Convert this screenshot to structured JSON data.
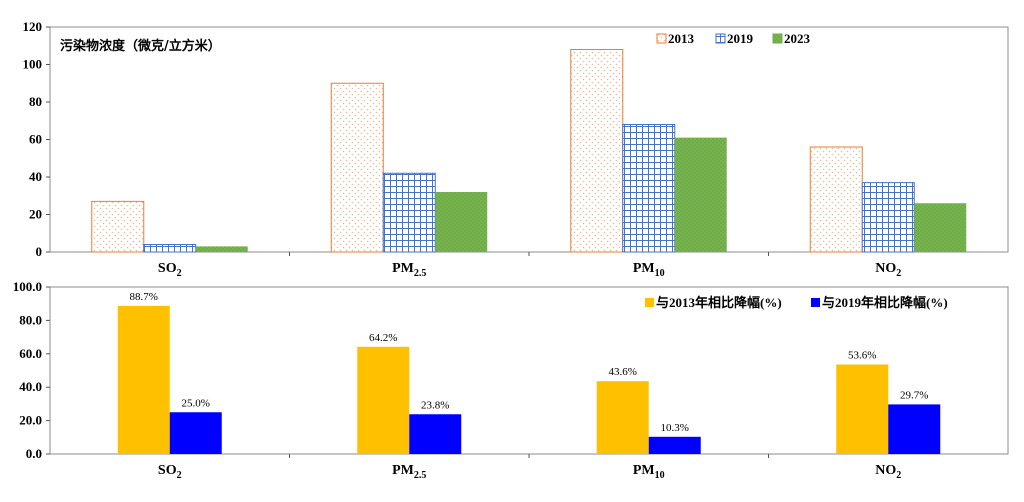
{
  "chart_data": [
    {
      "type": "bar",
      "title": "污染物浓度（微克/立方米）",
      "categories": [
        {
          "base": "SO",
          "sub": "2"
        },
        {
          "base": "PM",
          "sub": "2.5"
        },
        {
          "base": "PM",
          "sub": "10"
        },
        {
          "base": "NO",
          "sub": "2"
        }
      ],
      "series": [
        {
          "name": "2013",
          "values": [
            27,
            90,
            108,
            56
          ],
          "color": "#ED7D31",
          "pattern": "dots"
        },
        {
          "name": "2019",
          "values": [
            4,
            42,
            68,
            37
          ],
          "color": "#4472C4",
          "pattern": "grid"
        },
        {
          "name": "2023",
          "values": [
            3,
            32,
            61,
            26
          ],
          "color": "#70AD47",
          "pattern": "solid-dotted"
        }
      ],
      "ylim": [
        0,
        120
      ],
      "yticks": [
        "0",
        "20",
        "40",
        "60",
        "80",
        "100",
        "120"
      ],
      "legend_position": "top-right"
    },
    {
      "type": "bar",
      "categories": [
        {
          "base": "SO",
          "sub": "2"
        },
        {
          "base": "PM",
          "sub": "2.5"
        },
        {
          "base": "PM",
          "sub": "10"
        },
        {
          "base": "NO",
          "sub": "2"
        }
      ],
      "series": [
        {
          "name": "与2013年相比降幅(%)",
          "values": [
            88.7,
            64.2,
            43.6,
            53.6
          ],
          "labels": [
            "88.7%",
            "64.2%",
            "43.6%",
            "53.6%"
          ],
          "color": "#FFC000"
        },
        {
          "name": "与2019年相比降幅(%)",
          "values": [
            25.0,
            23.8,
            10.3,
            29.7
          ],
          "labels": [
            "25.0%",
            "23.8%",
            "10.3%",
            "29.7%"
          ],
          "color": "#0000FF"
        }
      ],
      "ylim": [
        0,
        100
      ],
      "yticks": [
        "0.0",
        "20.0",
        "40.0",
        "60.0",
        "80.0",
        "100.0"
      ],
      "legend_position": "top-right"
    }
  ]
}
